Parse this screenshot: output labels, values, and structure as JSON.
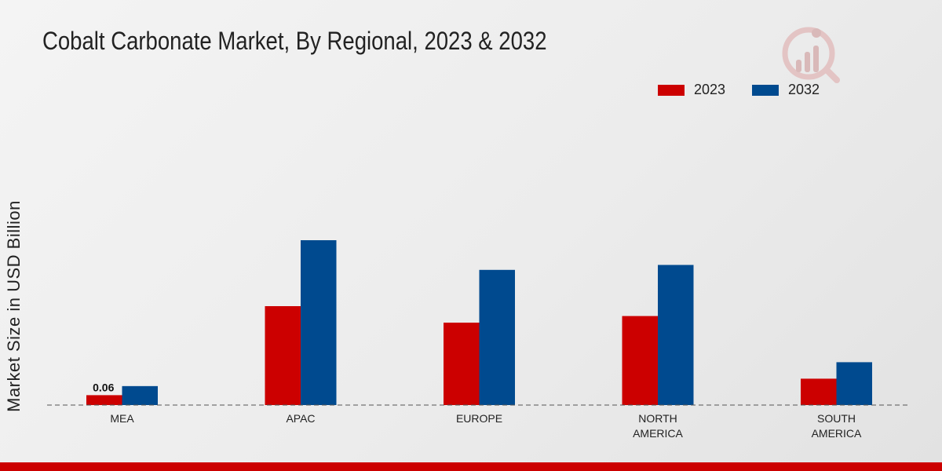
{
  "chart_data": {
    "type": "bar",
    "title": "Cobalt Carbonate Market, By Regional, 2023 & 2032",
    "xlabel": "",
    "ylabel": "Market Size in USD Billion",
    "categories": [
      [
        "MEA"
      ],
      [
        "APAC"
      ],
      [
        "EUROPE"
      ],
      [
        "NORTH",
        "AMERICA"
      ],
      [
        "SOUTH",
        "AMERICA"
      ]
    ],
    "series": [
      {
        "name": "2023",
        "color": "#cc0000",
        "values": [
          0.06,
          0.6,
          0.5,
          0.54,
          0.16
        ]
      },
      {
        "name": "2032",
        "color": "#004a8f",
        "values": [
          0.115,
          1.0,
          0.82,
          0.85,
          0.26
        ]
      }
    ],
    "data_labels": [
      {
        "series": 0,
        "index": 0,
        "text": "0.06"
      }
    ],
    "ylim": [
      0,
      1.2
    ],
    "grid": false,
    "legend_position": "top-right"
  },
  "colors": {
    "footer": "#cc0000",
    "axis": "#555555"
  }
}
